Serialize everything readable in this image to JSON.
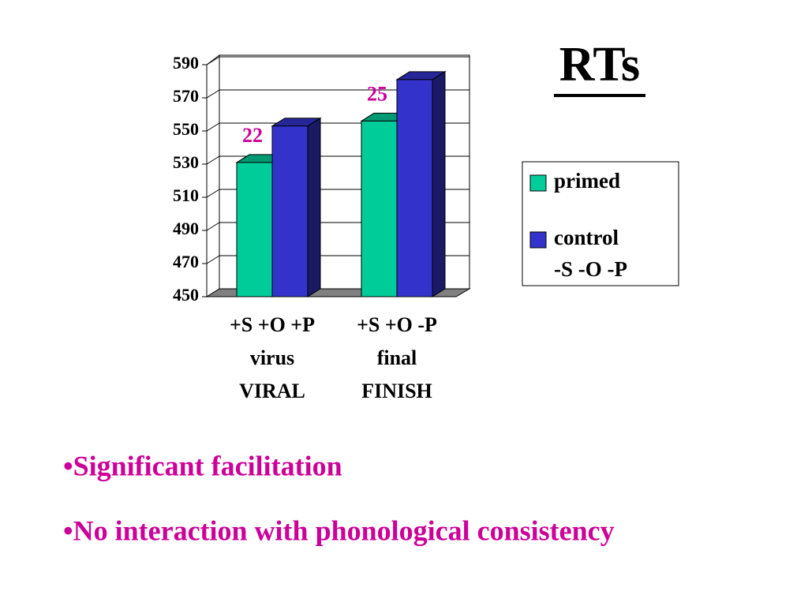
{
  "chart_data": {
    "type": "bar3d",
    "title": "RTs",
    "categories": [
      [
        "+S +O +P",
        "virus",
        "VIRAL"
      ],
      [
        "+S +O -P",
        "final",
        "FINISH"
      ]
    ],
    "series": [
      {
        "name": [
          "primed"
        ],
        "color": "#00cc99",
        "values": [
          531,
          556
        ]
      },
      {
        "name": [
          "control",
          "-S -O -P"
        ],
        "color": "#3333cc",
        "values": [
          553,
          581
        ]
      }
    ],
    "annotations": [
      "22",
      "25"
    ],
    "ylim": [
      450,
      590
    ],
    "yticks": [
      450,
      470,
      490,
      510,
      530,
      550,
      570,
      590
    ],
    "grid": true,
    "legend": "right"
  },
  "bullets": [
    "•Significant facilitation",
    "•No interaction with phonological consistency"
  ]
}
